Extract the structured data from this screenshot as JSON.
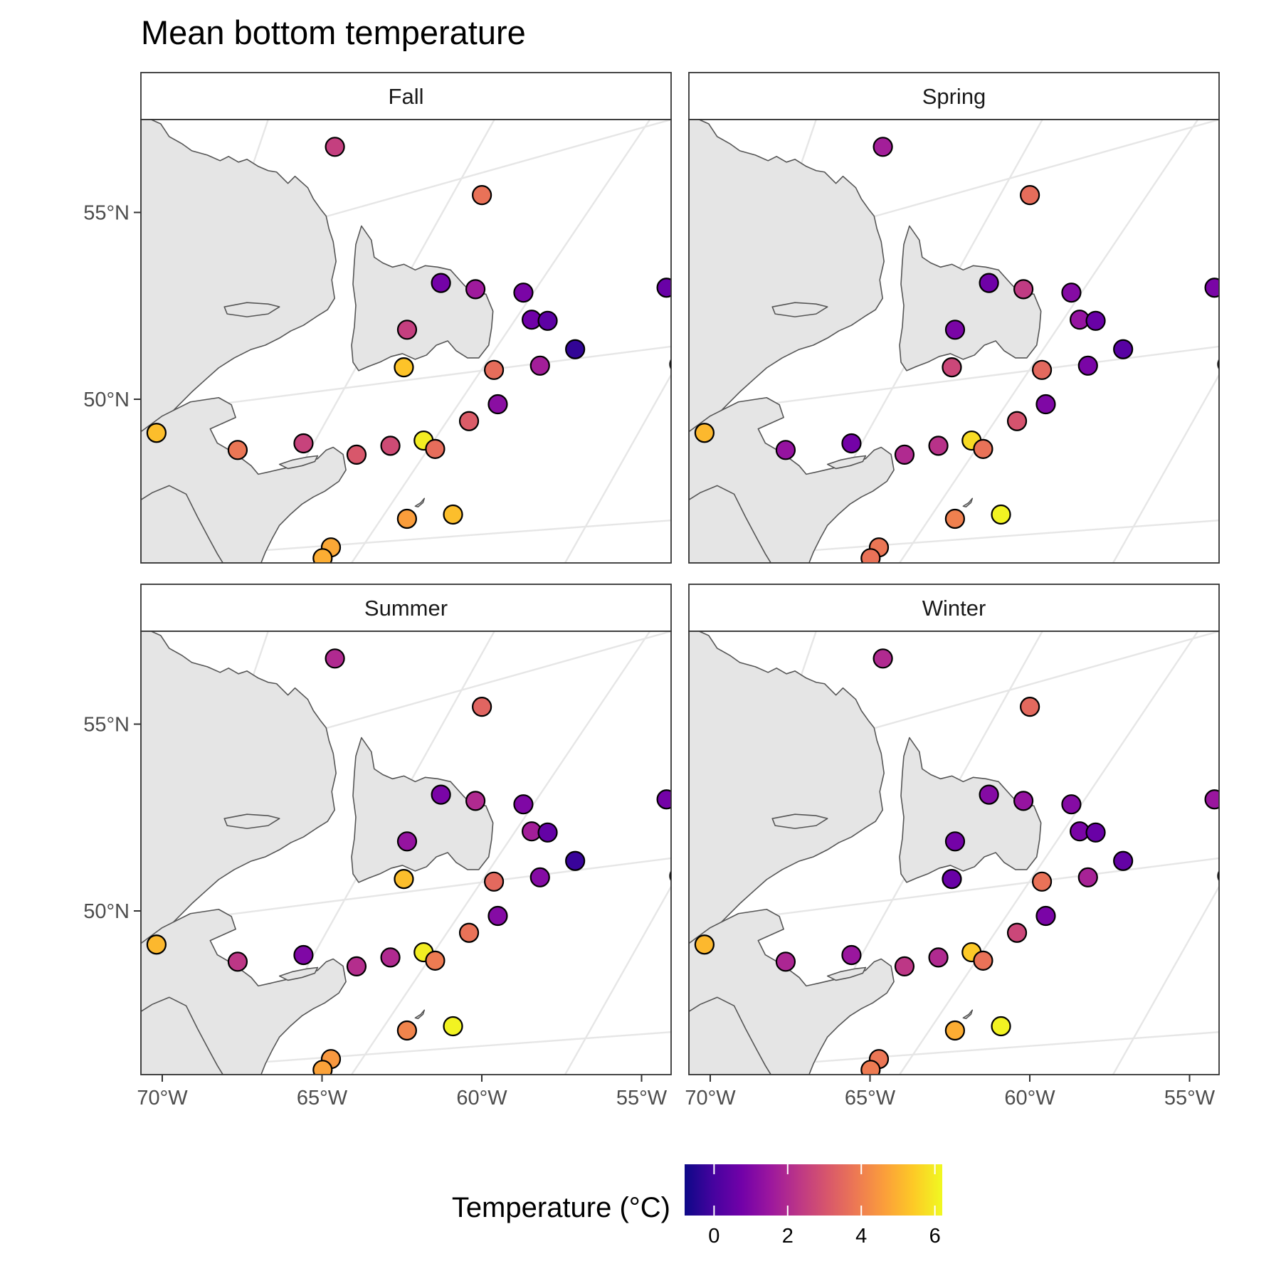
{
  "title": "Mean bottom temperature",
  "chart_data": {
    "type": "scatter",
    "title": "Mean bottom temperature",
    "facets": [
      "Fall",
      "Spring",
      "Summer",
      "Winter"
    ],
    "x_axis": {
      "ticks": [
        -70,
        -65,
        -60,
        -55
      ],
      "tick_labels": [
        "70°W",
        "65°W",
        "60°W",
        "55°W"
      ]
    },
    "y_axis": {
      "ticks": [
        50,
        55
      ],
      "tick_labels": [
        "50°N",
        "55°N"
      ]
    },
    "legend": {
      "title": "Temperature (°C)",
      "placement": "bottom",
      "range": [
        -0.8,
        6.2
      ],
      "ticks": [
        0,
        2,
        4,
        6
      ],
      "tick_labels": [
        "0",
        "2",
        "4",
        "6"
      ],
      "colors": [
        "#0d0887",
        "#46039f",
        "#7201a8",
        "#9c179e",
        "#bd3786",
        "#d8576b",
        "#ed7953",
        "#fb9f3a",
        "#fdca26",
        "#f0f921"
      ]
    },
    "stations": [
      {
        "lon": -66.0,
        "lat": 57.0
      },
      {
        "lon": -61.2,
        "lat": 56.0
      },
      {
        "lon": -55.0,
        "lat": 53.9
      },
      {
        "lon": -62.0,
        "lat": 53.6
      },
      {
        "lon": -60.9,
        "lat": 53.5
      },
      {
        "lon": -59.4,
        "lat": 53.5
      },
      {
        "lon": -59.0,
        "lat": 52.8
      },
      {
        "lon": -58.5,
        "lat": 52.8
      },
      {
        "lon": -57.5,
        "lat": 52.1
      },
      {
        "lon": -62.8,
        "lat": 52.3
      },
      {
        "lon": -54.2,
        "lat": 51.9
      },
      {
        "lon": -53.4,
        "lat": 51.1
      },
      {
        "lon": -58.5,
        "lat": 51.6
      },
      {
        "lon": -59.9,
        "lat": 51.4
      },
      {
        "lon": -62.7,
        "lat": 51.3
      },
      {
        "lon": -59.6,
        "lat": 50.5
      },
      {
        "lon": -60.4,
        "lat": 50.0
      },
      {
        "lon": -70.0,
        "lat": 49.1
      },
      {
        "lon": -67.4,
        "lat": 48.8
      },
      {
        "lon": -65.4,
        "lat": 49.1
      },
      {
        "lon": -63.7,
        "lat": 48.9
      },
      {
        "lon": -62.7,
        "lat": 49.2
      },
      {
        "lon": -61.7,
        "lat": 49.4
      },
      {
        "lon": -61.3,
        "lat": 49.2
      },
      {
        "lon": -61.8,
        "lat": 47.3
      },
      {
        "lon": -60.4,
        "lat": 47.5
      },
      {
        "lon": -64.0,
        "lat": 46.4
      },
      {
        "lon": -64.2,
        "lat": 46.1
      }
    ],
    "series": [
      {
        "name": "Fall",
        "values": [
          2.5,
          3.7,
          0.6,
          0.8,
          1.6,
          0.9,
          0.7,
          0.4,
          -0.3,
          2.5,
          2.5,
          1.8,
          1.7,
          3.6,
          5.3,
          1.2,
          3.2,
          5.2,
          3.8,
          2.6,
          3.1,
          2.8,
          6.0,
          3.6,
          4.6,
          5.2,
          4.8,
          4.9
        ]
      },
      {
        "name": "Spring",
        "values": [
          1.7,
          3.6,
          0.9,
          0.7,
          2.4,
          1.1,
          1.4,
          0.6,
          0.3,
          0.9,
          2.7,
          1.6,
          0.9,
          3.5,
          2.7,
          1.0,
          3.0,
          5.1,
          1.4,
          0.8,
          2.0,
          2.2,
          5.7,
          3.7,
          4.0,
          6.1,
          3.8,
          3.7
        ]
      },
      {
        "name": "Summer",
        "values": [
          2.0,
          3.4,
          0.8,
          0.9,
          2.0,
          1.0,
          1.7,
          0.5,
          -0.2,
          1.4,
          2.3,
          2.1,
          1.1,
          3.5,
          5.2,
          1.1,
          3.7,
          5.1,
          2.3,
          1.0,
          2.1,
          2.0,
          6.0,
          3.9,
          4.1,
          6.1,
          4.5,
          4.7
        ]
      },
      {
        "name": "Winter",
        "values": [
          2.0,
          3.5,
          1.5,
          1.1,
          1.4,
          1.1,
          0.9,
          0.6,
          0.5,
          0.8,
          2.4,
          1.7,
          1.8,
          3.7,
          0.6,
          0.9,
          2.7,
          5.1,
          1.9,
          1.5,
          2.3,
          2.0,
          5.4,
          3.7,
          4.9,
          6.1,
          3.8,
          3.9
        ]
      }
    ]
  }
}
